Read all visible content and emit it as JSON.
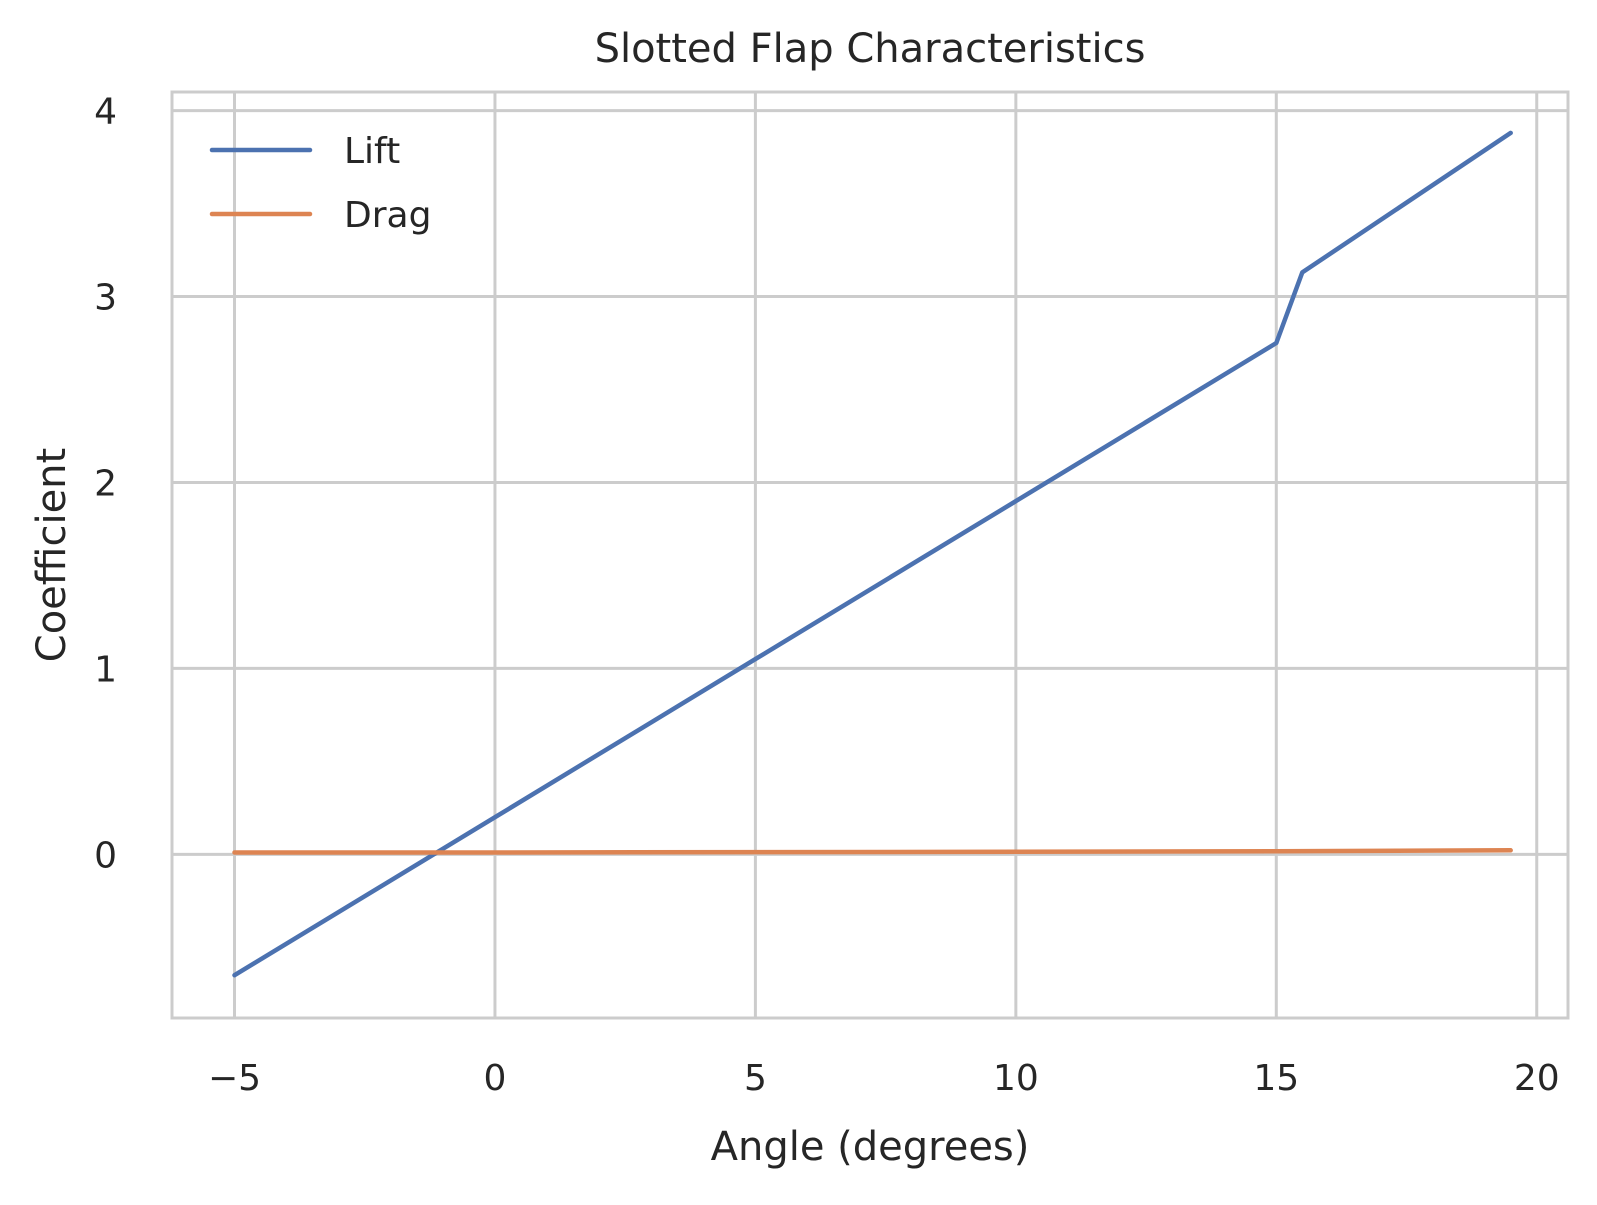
{
  "chart_data": {
    "type": "line",
    "title": "Slotted Flap Characteristics",
    "xlabel": "Angle (degrees)",
    "ylabel": "Coefficient",
    "xlim": [
      -6.2,
      20.6
    ],
    "ylim": [
      -0.88,
      4.1
    ],
    "xticks": [
      -5,
      0,
      5,
      10,
      15,
      20
    ],
    "xtick_labels": [
      "−5",
      "0",
      "5",
      "10",
      "15",
      "20"
    ],
    "yticks": [
      0,
      1,
      2,
      3,
      4
    ],
    "ytick_labels": [
      "0",
      "1",
      "2",
      "3",
      "4"
    ],
    "grid": true,
    "legend_position": "upper-left",
    "series": [
      {
        "name": "Lift",
        "color": "#4c72b0",
        "x": [
          -5,
          0,
          5,
          10,
          15,
          15.5,
          19.5
        ],
        "y": [
          -0.65,
          0.2,
          1.05,
          1.9,
          2.75,
          3.13,
          3.88
        ]
      },
      {
        "name": "Drag",
        "color": "#dd8452",
        "x": [
          -5,
          0,
          5,
          10,
          15,
          19.5
        ],
        "y": [
          0.01,
          0.01,
          0.012,
          0.014,
          0.017,
          0.022
        ]
      }
    ]
  }
}
